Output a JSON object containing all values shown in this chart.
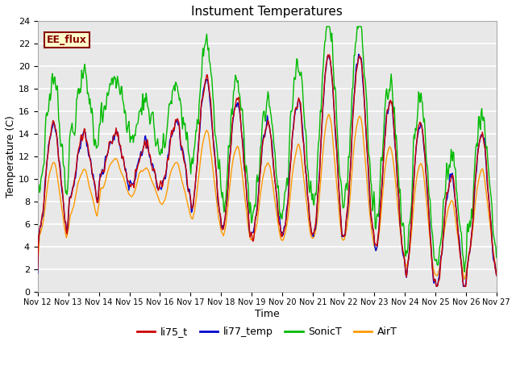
{
  "title": "Instument Temperatures",
  "xlabel": "Time",
  "ylabel": "Temperature (C)",
  "ylim": [
    0,
    24
  ],
  "yticks": [
    0,
    2,
    4,
    6,
    8,
    10,
    12,
    14,
    16,
    18,
    20,
    22,
    24
  ],
  "xlabels": [
    "Nov 12",
    "Nov 13",
    "Nov 14",
    "Nov 15",
    "Nov 16",
    "Nov 17",
    "Nov 18",
    "Nov 19",
    "Nov 20",
    "Nov 21",
    "Nov 22",
    "Nov 23",
    "Nov 24",
    "Nov 25",
    "Nov 26",
    "Nov 27"
  ],
  "legend_labels": [
    "li75_t",
    "li77_temp",
    "SonicT",
    "AirT"
  ],
  "colors": {
    "li75_t": "#cc0000",
    "li77_temp": "#0000cc",
    "SonicT": "#00bb00",
    "AirT": "#ff9900"
  },
  "annotation_text": "EE_flux",
  "annotation_color": "#880000",
  "annotation_bg": "#ffffcc",
  "fig_bg": "#ffffff",
  "plot_bg": "#e8e8e8",
  "grid_color": "#ffffff",
  "title_fontsize": 11,
  "axis_fontsize": 9,
  "tick_fontsize": 8,
  "legend_fontsize": 9
}
